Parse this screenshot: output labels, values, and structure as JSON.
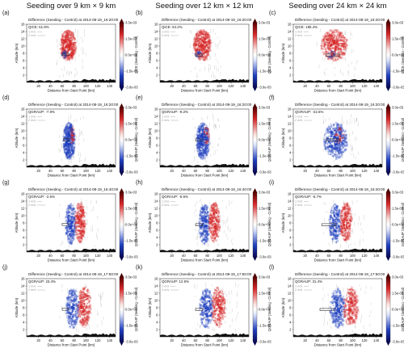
{
  "colors": {
    "positive": "#d62728",
    "negative": "#1f3fbf",
    "terrain": "#111111",
    "seeding_box": "#333333",
    "wind": "#9a9a9a"
  },
  "column_titles": [
    "Seeding over 9 km × 9 km",
    "Seeding over 12 km × 12 km",
    "Seeding over 24 km × 24 km"
  ],
  "chart_data": [
    {
      "panel": "a",
      "type": "heatmap",
      "title": "Difference (Seeding - Control) at 2014-08-19_16:20:00",
      "annotation": "QICE: 61.9%",
      "colorbar_label": "QICE (Seeding - Control)",
      "xlabel": "Distance from Start Point (km)",
      "ylabel": "Altitude (km)",
      "xlim": [
        0,
        150
      ],
      "ylim": [
        0,
        16
      ],
      "xticks": [
        "20",
        "40",
        "60",
        "80",
        "100",
        "120",
        "140"
      ],
      "yticks": [
        "2",
        "4",
        "6",
        "8",
        "10",
        "12",
        "14",
        "16"
      ],
      "colorbar_ticks": [
        "3.0e-03",
        "1.5e-03",
        "0.0e+00",
        "-1.5e-03",
        "-3.0e-03"
      ],
      "wind_refs": [
        "1 m/s",
        "2 m/s"
      ],
      "seeding_box": {
        "x": [
          60,
          72
        ],
        "y": [
          7.4,
          8.0
        ]
      },
      "dominant_sign": "positive",
      "signal_x": [
        55,
        82
      ],
      "signal_y": [
        6.5,
        15
      ]
    },
    {
      "panel": "b",
      "type": "heatmap",
      "title": "Difference (Seeding - Control) at 2014-08-19_16:20:00",
      "annotation": "QICE: 64.2%",
      "colorbar_label": "QICE (Seeding - Control)",
      "xlabel": "Distance from Start Point (km)",
      "ylabel": "Altitude (km)",
      "xlim": [
        0,
        150
      ],
      "ylim": [
        0,
        16
      ],
      "xticks": [
        "20",
        "40",
        "60",
        "80",
        "100",
        "120",
        "140"
      ],
      "yticks": [
        "2",
        "4",
        "6",
        "8",
        "10",
        "12",
        "14",
        "16"
      ],
      "colorbar_ticks": [
        "3.0e-03",
        "1.5e-03",
        "0.0e+00",
        "-1.5e-03",
        "-3.0e-03"
      ],
      "wind_refs": [
        "1 m/s",
        "2 m/s"
      ],
      "seeding_box": {
        "x": [
          60,
          72
        ],
        "y": [
          7.2,
          7.8
        ]
      },
      "dominant_sign": "positive",
      "signal_x": [
        55,
        85
      ],
      "signal_y": [
        6.5,
        15
      ]
    },
    {
      "panel": "c",
      "type": "heatmap",
      "title": "Difference (Seeding - Control) at 2014-08-19_16:20:00",
      "annotation": "QICE: 185.4%",
      "colorbar_label": "QICE (Seeding - Control)",
      "xlabel": "Distance from Start Point (km)",
      "ylabel": "Altitude (km)",
      "xlim": [
        0,
        150
      ],
      "ylim": [
        0,
        16
      ],
      "xticks": [
        "20",
        "40",
        "60",
        "80",
        "100",
        "120",
        "140"
      ],
      "yticks": [
        "2",
        "4",
        "6",
        "8",
        "10",
        "12",
        "14",
        "16"
      ],
      "colorbar_ticks": [
        "3.0e-03",
        "1.5e-03",
        "0.0e+00",
        "-1.5e-03",
        "-3.0e-03"
      ],
      "wind_refs": [
        "1 m/s",
        "2 m/s"
      ],
      "seeding_box": {
        "x": [
          55,
          78
        ],
        "y": [
          7.2,
          7.8
        ]
      },
      "dominant_sign": "positive",
      "signal_x": [
        45,
        90
      ],
      "signal_y": [
        6.5,
        15
      ]
    },
    {
      "panel": "d",
      "type": "heatmap",
      "title": "Difference (Seeding - Control) at 2014-08-19_16:20:00",
      "annotation": "QGRAUP: -7.9%",
      "colorbar_label": "QGRAUP (Seeding - Control)",
      "xlabel": "Distance from Start Point (km)",
      "ylabel": "Altitude (km)",
      "xlim": [
        0,
        150
      ],
      "ylim": [
        0,
        16
      ],
      "xticks": [
        "20",
        "40",
        "60",
        "80",
        "100",
        "120",
        "140"
      ],
      "yticks": [
        "2",
        "4",
        "6",
        "8",
        "10",
        "12",
        "14",
        "16"
      ],
      "colorbar_ticks": [
        "3.0e-03",
        "1.5e-03",
        "0.0e+00",
        "-1.5e-03",
        "-3.0e-03"
      ],
      "wind_refs": [
        "1 m/s",
        "2 m/s"
      ],
      "seeding_box": {
        "x": [
          62,
          72
        ],
        "y": [
          7.3,
          7.9
        ]
      },
      "dominant_sign": "negative",
      "signal_x": [
        60,
        80
      ],
      "signal_y": [
        2,
        13
      ]
    },
    {
      "panel": "e",
      "type": "heatmap",
      "title": "Difference (Seeding - Control) at 2014-08-19_16:20:00",
      "annotation": "QGRAUP: -9.2%",
      "colorbar_label": "QGRAUP (Seeding - Control)",
      "xlabel": "Distance from Start Point (km)",
      "ylabel": "Altitude (km)",
      "xlim": [
        0,
        150
      ],
      "ylim": [
        0,
        16
      ],
      "xticks": [
        "20",
        "40",
        "60",
        "80",
        "100",
        "120",
        "140"
      ],
      "yticks": [
        "2",
        "4",
        "6",
        "8",
        "10",
        "12",
        "14",
        "16"
      ],
      "colorbar_ticks": [
        "3.0e-03",
        "1.5e-03",
        "0.0e+00",
        "-1.5e-03",
        "-3.0e-03"
      ],
      "wind_refs": [
        "1 m/s",
        "2 m/s"
      ],
      "seeding_box": {
        "x": [
          60,
          72
        ],
        "y": [
          7.2,
          7.8
        ]
      },
      "dominant_sign": "negative",
      "signal_x": [
        60,
        82
      ],
      "signal_y": [
        2,
        13
      ]
    },
    {
      "panel": "f",
      "type": "heatmap",
      "title": "Difference (Seeding - Control) at 2014-08-19_16:20:00",
      "annotation": "QGRAUP: -22.6%",
      "colorbar_label": "QGRAUP (Seeding - Control)",
      "xlabel": "Distance from Start Point (km)",
      "ylabel": "Altitude (km)",
      "xlim": [
        0,
        150
      ],
      "ylim": [
        0,
        16
      ],
      "xticks": [
        "20",
        "40",
        "60",
        "80",
        "100",
        "120",
        "140"
      ],
      "yticks": [
        "2",
        "4",
        "6",
        "8",
        "10",
        "12",
        "14",
        "16"
      ],
      "colorbar_ticks": [
        "3.0e-03",
        "1.5e-03",
        "0.0e+00",
        "-1.5e-03",
        "-3.0e-03"
      ],
      "wind_refs": [
        "1 m/s",
        "2 m/s"
      ],
      "seeding_box": {
        "x": [
          55,
          78
        ],
        "y": [
          7.2,
          7.8
        ]
      },
      "dominant_sign": "negative",
      "signal_x": [
        50,
        90
      ],
      "signal_y": [
        2,
        13
      ]
    },
    {
      "panel": "g",
      "type": "heatmap",
      "title": "Difference (Seeding - Control) at 2014-08-19_16:40:00",
      "annotation": "QGRAUP: -2.6%",
      "colorbar_label": "QGRAUP (Seeding - Control)",
      "xlabel": "Distance from Start Point (km)",
      "ylabel": "Altitude (km)",
      "xlim": [
        0,
        150
      ],
      "ylim": [
        0,
        16
      ],
      "xticks": [
        "20",
        "40",
        "60",
        "80",
        "100",
        "120",
        "140"
      ],
      "yticks": [
        "2",
        "4",
        "6",
        "8",
        "10",
        "12",
        "14",
        "16"
      ],
      "colorbar_ticks": [
        "3.0e-03",
        "1.5e-03",
        "0.0e+00",
        "-1.5e-03",
        "-3.0e-03"
      ],
      "wind_refs": [
        "1 m/s",
        "2 m/s"
      ],
      "seeding_box": {
        "x": [
          60,
          70
        ],
        "y": [
          7.3,
          7.9
        ]
      },
      "dominant_sign": "mixed",
      "signal_x": [
        60,
        100
      ],
      "signal_y": [
        2,
        14
      ]
    },
    {
      "panel": "h",
      "type": "heatmap",
      "title": "Difference (Seeding - Control) at 2014-08-19_16:40:00",
      "annotation": "QGRAUP: -5.6%",
      "colorbar_label": "QGRAUP (Seeding - Control)",
      "xlabel": "Distance from Start Point (km)",
      "ylabel": "Altitude (km)",
      "xlim": [
        0,
        150
      ],
      "ylim": [
        0,
        16
      ],
      "xticks": [
        "20",
        "40",
        "60",
        "80",
        "100",
        "120",
        "140"
      ],
      "yticks": [
        "2",
        "4",
        "6",
        "8",
        "10",
        "12",
        "14",
        "16"
      ],
      "colorbar_ticks": [
        "3.0e-03",
        "1.5e-03",
        "0.0e+00",
        "-1.5e-03",
        "-3.0e-03"
      ],
      "wind_refs": [
        "1 m/s",
        "2 m/s"
      ],
      "seeding_box": {
        "x": [
          60,
          72
        ],
        "y": [
          7.2,
          7.8
        ]
      },
      "dominant_sign": "mixed",
      "signal_x": [
        60,
        102
      ],
      "signal_y": [
        2,
        14
      ]
    },
    {
      "panel": "i",
      "type": "heatmap",
      "title": "Difference (Seeding - Control) at 2014-08-19_16:40:00",
      "annotation": "QGRAUP: -6.7%",
      "colorbar_label": "QGRAUP (Seeding - Control)",
      "xlabel": "Distance from Start Point (km)",
      "ylabel": "Altitude (km)",
      "xlim": [
        0,
        150
      ],
      "ylim": [
        0,
        16
      ],
      "xticks": [
        "20",
        "40",
        "60",
        "80",
        "100",
        "120",
        "140"
      ],
      "yticks": [
        "2",
        "4",
        "6",
        "8",
        "10",
        "12",
        "14",
        "16"
      ],
      "colorbar_ticks": [
        "3.0e-03",
        "1.5e-03",
        "0.0e+00",
        "-1.5e-03",
        "-3.0e-03"
      ],
      "wind_refs": [
        "1 m/s",
        "2 m/s"
      ],
      "seeding_box": {
        "x": [
          48,
          72
        ],
        "y": [
          7.2,
          7.8
        ]
      },
      "dominant_sign": "mixed",
      "signal_x": [
        55,
        100
      ],
      "signal_y": [
        2,
        14
      ]
    },
    {
      "panel": "j",
      "type": "heatmap",
      "title": "Difference (Seeding - Control) at 2014-08-19_17:50:00",
      "annotation": "QGRAUP: 23.4%",
      "colorbar_label": "QGRAUP (Seeding - Control)",
      "xlabel": "Distance from Start Point (km)",
      "ylabel": "Altitude (km)",
      "xlim": [
        0,
        150
      ],
      "ylim": [
        0,
        16
      ],
      "xticks": [
        "20",
        "40",
        "60",
        "80",
        "100",
        "120",
        "140"
      ],
      "yticks": [
        "2",
        "4",
        "6",
        "8",
        "10",
        "12",
        "14",
        "16"
      ],
      "colorbar_ticks": [
        "3.0e-03",
        "1.5e-03",
        "0.0e+00",
        "-1.5e-03",
        "-3.0e-03"
      ],
      "wind_refs": [
        "1 m/s",
        "2 m/s"
      ],
      "seeding_box": {
        "x": [
          60,
          70
        ],
        "y": [
          7.3,
          7.9
        ]
      },
      "dominant_sign": "mixed",
      "signal_x": [
        60,
        110
      ],
      "signal_y": [
        2,
        14
      ]
    },
    {
      "panel": "k",
      "type": "heatmap",
      "title": "Difference (Seeding - Control) at 2014-08-19_17:50:00",
      "annotation": "QGRAUP: 12.5%",
      "colorbar_label": "QGRAUP (Seeding - Control)",
      "xlabel": "Distance from Start Point (km)",
      "ylabel": "Altitude (km)",
      "xlim": [
        0,
        150
      ],
      "ylim": [
        0,
        16
      ],
      "xticks": [
        "20",
        "40",
        "60",
        "80",
        "100",
        "120",
        "140"
      ],
      "yticks": [
        "2",
        "4",
        "6",
        "8",
        "10",
        "12",
        "14",
        "16"
      ],
      "colorbar_ticks": [
        "3.0e-03",
        "1.5e-03",
        "0.0e+00",
        "-1.5e-03",
        "-3.0e-03"
      ],
      "wind_refs": [
        "1 m/s",
        "2 m/s"
      ],
      "seeding_box": {
        "x": [
          60,
          72
        ],
        "y": [
          7.2,
          7.8
        ]
      },
      "dominant_sign": "mixed",
      "signal_x": [
        60,
        112
      ],
      "signal_y": [
        2,
        14
      ]
    },
    {
      "panel": "l",
      "type": "heatmap",
      "title": "Difference (Seeding - Control) at 2014-08-19_17:50:00",
      "annotation": "QGRAUP: 31.4%",
      "colorbar_label": "QGRAUP (Seeding - Control)",
      "xlabel": "Distance from Start Point (km)",
      "ylabel": "Altitude (km)",
      "xlim": [
        0,
        150
      ],
      "ylim": [
        0,
        16
      ],
      "xticks": [
        "20",
        "40",
        "60",
        "80",
        "100",
        "120",
        "140"
      ],
      "yticks": [
        "2",
        "4",
        "6",
        "8",
        "10",
        "12",
        "14",
        "16"
      ],
      "colorbar_ticks": [
        "3.0e-03",
        "1.5e-03",
        "0.0e+00",
        "-1.5e-03",
        "-3.0e-03"
      ],
      "wind_refs": [
        "1 m/s",
        "2 m/s"
      ],
      "seeding_box": {
        "x": [
          45,
          70
        ],
        "y": [
          7.2,
          7.8
        ]
      },
      "dominant_sign": "mixed",
      "signal_x": [
        55,
        112
      ],
      "signal_y": [
        2,
        14
      ]
    }
  ]
}
